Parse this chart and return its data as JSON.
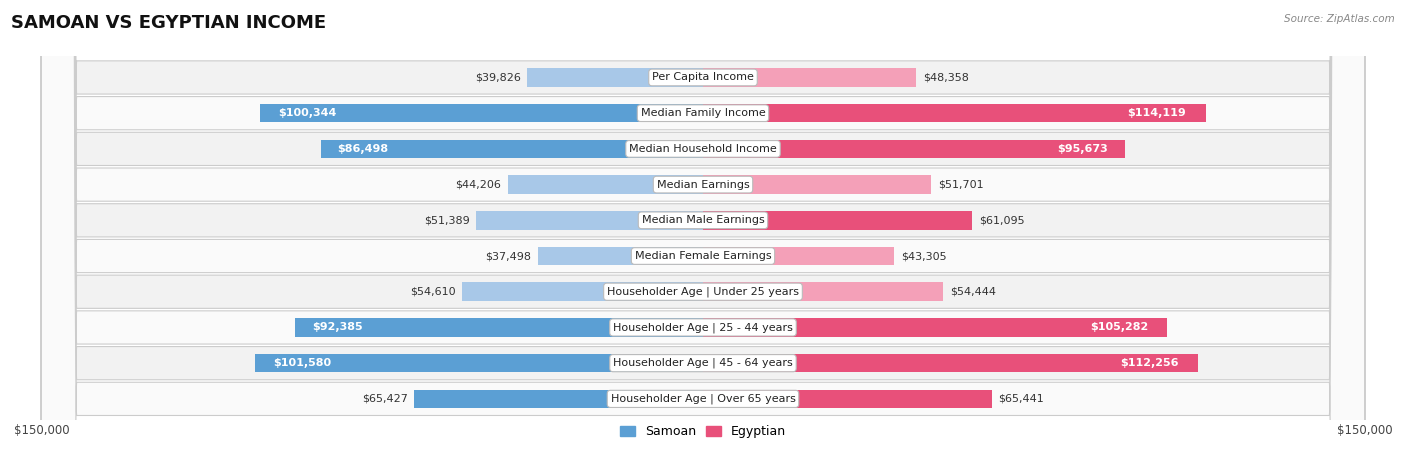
{
  "title": "SAMOAN VS EGYPTIAN INCOME",
  "source": "Source: ZipAtlas.com",
  "categories": [
    "Per Capita Income",
    "Median Family Income",
    "Median Household Income",
    "Median Earnings",
    "Median Male Earnings",
    "Median Female Earnings",
    "Householder Age | Under 25 years",
    "Householder Age | 25 - 44 years",
    "Householder Age | 45 - 64 years",
    "Householder Age | Over 65 years"
  ],
  "samoan": [
    39826,
    100344,
    86498,
    44206,
    51389,
    37498,
    54610,
    92385,
    101580,
    65427
  ],
  "egyptian": [
    48358,
    114119,
    95673,
    51701,
    61095,
    43305,
    54444,
    105282,
    112256,
    65441
  ],
  "samoan_labels": [
    "$39,826",
    "$100,344",
    "$86,498",
    "$44,206",
    "$51,389",
    "$37,498",
    "$54,610",
    "$92,385",
    "$101,580",
    "$65,427"
  ],
  "egyptian_labels": [
    "$48,358",
    "$114,119",
    "$95,673",
    "$51,701",
    "$61,095",
    "$43,305",
    "$54,444",
    "$105,282",
    "$112,256",
    "$65,441"
  ],
  "samoan_inside": [
    false,
    true,
    true,
    false,
    false,
    false,
    false,
    true,
    true,
    false
  ],
  "egyptian_inside": [
    false,
    true,
    true,
    false,
    false,
    false,
    false,
    true,
    true,
    false
  ],
  "max_val": 150000,
  "samoan_color_light": "#A8C8E8",
  "samoan_color_dark": "#5B9FD4",
  "egyptian_color_light": "#F4A0B8",
  "egyptian_color_dark": "#E8507A",
  "label_color_inside": "#FFFFFF",
  "label_color_outside": "#333333",
  "bg_color": "#FFFFFF",
  "row_bg_even": "#F2F2F2",
  "row_bg_odd": "#FAFAFA",
  "title_fontsize": 13,
  "label_fontsize": 8,
  "category_fontsize": 8,
  "axis_label_fontsize": 8.5,
  "legend_fontsize": 9,
  "bar_height": 0.52,
  "xlim": 150000
}
